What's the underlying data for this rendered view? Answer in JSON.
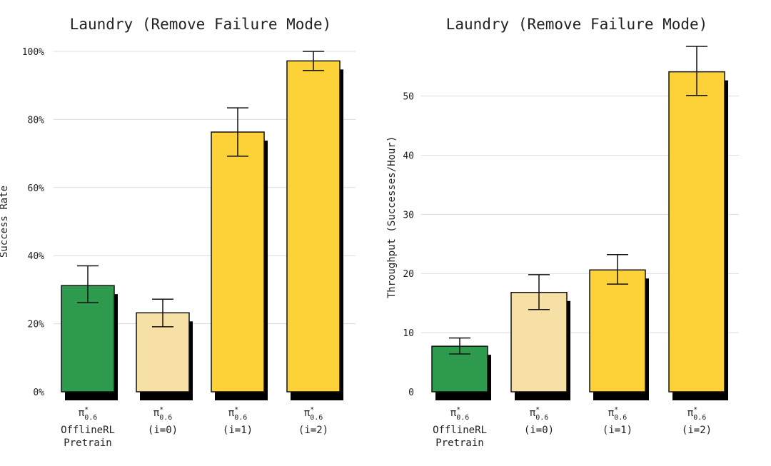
{
  "chart_data": [
    {
      "type": "bar",
      "title": "Laundry (Remove Failure Mode)",
      "ylabel": "Success Rate",
      "xlabel": "",
      "ylim": [
        0,
        100
      ],
      "yticks": [
        0,
        20,
        40,
        60,
        80,
        100
      ],
      "ytick_labels": [
        "0%",
        "20%",
        "40%",
        "60%",
        "80%",
        "100%"
      ],
      "categories": [
        {
          "pi": "π",
          "sup": "*",
          "sub": "0.6",
          "line2": "OfflineRL",
          "line3": "Pretrain"
        },
        {
          "pi": "π",
          "sup": "*",
          "sub": "0.6",
          "line2": "(i=0)",
          "line3": ""
        },
        {
          "pi": "π",
          "sup": "*",
          "sub": "0.6",
          "line2": "(i=1)",
          "line3": ""
        },
        {
          "pi": "π",
          "sup": "*",
          "sub": "0.6",
          "line2": "(i=2)",
          "line3": ""
        }
      ],
      "values": [
        31.2,
        23.2,
        76.3,
        97.2
      ],
      "error_low": [
        26.2,
        19.1,
        69.2,
        94.4
      ],
      "error_high": [
        37.0,
        27.2,
        83.4,
        100.0
      ],
      "colors": [
        "#2e9a4d",
        "#f7e0a5",
        "#fdd138",
        "#fdd138"
      ],
      "grid": true
    },
    {
      "type": "bar",
      "title": "Laundry (Remove Failure Mode)",
      "ylabel": "Throughput (Successes/Hour)",
      "xlabel": "",
      "ylim": [
        0,
        59
      ],
      "yticks": [
        0,
        10,
        20,
        30,
        40,
        50
      ],
      "ytick_labels": [
        "0",
        "10",
        "20",
        "30",
        "40",
        "50"
      ],
      "categories": [
        {
          "pi": "π",
          "sup": "*",
          "sub": "0.6",
          "line2": "OfflineRL",
          "line3": "Pretrain"
        },
        {
          "pi": "π",
          "sup": "*",
          "sub": "0.6",
          "line2": "(i=0)",
          "line3": ""
        },
        {
          "pi": "π",
          "sup": "*",
          "sub": "0.6",
          "line2": "(i=1)",
          "line3": ""
        },
        {
          "pi": "π",
          "sup": "*",
          "sub": "0.6",
          "line2": "(i=2)",
          "line3": ""
        }
      ],
      "values": [
        7.7,
        16.8,
        20.6,
        54.1
      ],
      "error_low": [
        6.4,
        13.9,
        18.2,
        50.1
      ],
      "error_high": [
        9.1,
        19.8,
        23.2,
        58.4
      ],
      "colors": [
        "#2e9a4d",
        "#f7e0a5",
        "#fdd138",
        "#fdd138"
      ],
      "grid": true
    }
  ]
}
